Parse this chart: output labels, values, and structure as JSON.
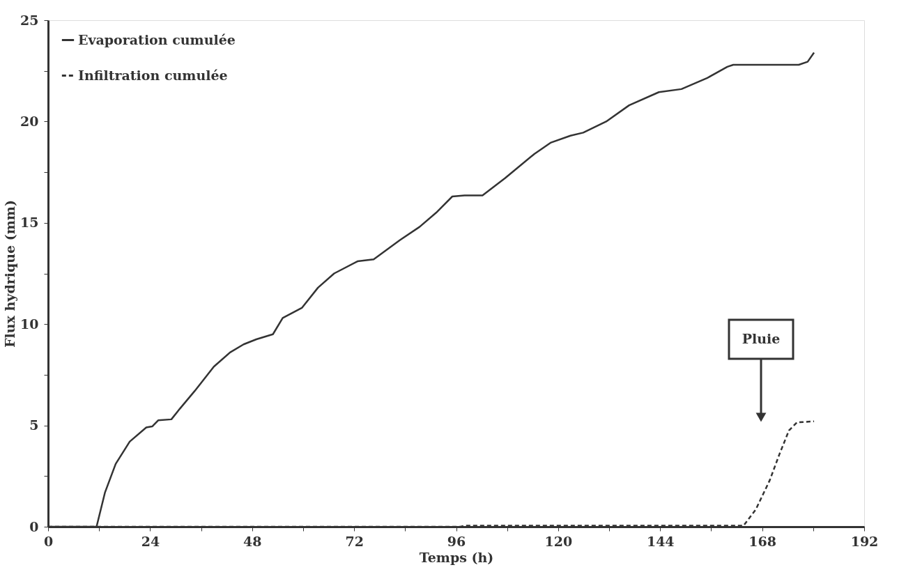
{
  "chart_data": {
    "type": "line",
    "xlabel": "Temps (h)",
    "ylabel": "Flux hydrique (mm)",
    "xlim": [
      0,
      192
    ],
    "ylim": [
      0,
      25
    ],
    "xticks": [
      0,
      {
        "value": 12,
        "label": null
      },
      24,
      {
        "value": 36,
        "label": null
      },
      48,
      {
        "value": 60,
        "label": null
      },
      72,
      {
        "value": 84,
        "label": null
      },
      96,
      {
        "value": 108,
        "label": null
      },
      120,
      {
        "value": 132,
        "label": null
      },
      144,
      {
        "value": 156,
        "label": null
      },
      168,
      {
        "value": 180,
        "label": null
      },
      192
    ],
    "yticks": [
      0,
      {
        "value": 2.5,
        "label": null
      },
      5,
      {
        "value": 7.5,
        "label": null
      },
      10,
      {
        "value": 12.5,
        "label": null
      },
      15,
      {
        "value": 17.5,
        "label": null
      },
      20,
      {
        "value": 22.5,
        "label": null
      },
      25
    ],
    "grid": false,
    "legend": "top left",
    "marker": "none",
    "series": [
      {
        "name": "Evaporation cumulée",
        "color": "#333333",
        "line_style": "solid",
        "x": [
          0,
          11.4,
          13.4,
          15.9,
          19.2,
          23.1,
          24.5,
          25.9,
          29,
          30.9,
          34.5,
          39,
          42.8,
          46,
          49,
          52.9,
          55.2,
          59.7,
          63.5,
          67.3,
          72.8,
          76.6,
          82.8,
          87.4,
          91.3,
          95.1,
          98,
          102.2,
          107.5,
          114.4,
          118.2,
          122.9,
          125.9,
          131.3,
          136.7,
          143.7,
          149,
          155.1,
          159.8,
          161.2,
          176.6,
          178.7,
          180.2
        ],
        "values": [
          0,
          0,
          1.7,
          3.1,
          4.2,
          4.9,
          4.95,
          5.25,
          5.3,
          5.8,
          6.7,
          7.9,
          8.6,
          9.0,
          9.25,
          9.5,
          10.3,
          10.8,
          11.8,
          12.5,
          13.1,
          13.2,
          14.15,
          14.8,
          15.5,
          16.3,
          16.35,
          16.35,
          17.2,
          18.4,
          18.95,
          19.3,
          19.45,
          20.0,
          20.8,
          21.45,
          21.6,
          22.15,
          22.7,
          22.8,
          22.8,
          22.95,
          23.4
        ]
      },
      {
        "name": "Infiltration cumulée",
        "color": "#333333",
        "line_style": "dashed",
        "x": [
          0,
          97,
          98,
          163.6,
          166.5,
          169.8,
          172.1,
          174.3,
          176.2,
          180.2
        ],
        "values": [
          0,
          0,
          0.05,
          0.05,
          0.85,
          2.3,
          3.6,
          4.75,
          5.15,
          5.2
        ]
      }
    ],
    "annotations": [
      "Pluie"
    ]
  }
}
